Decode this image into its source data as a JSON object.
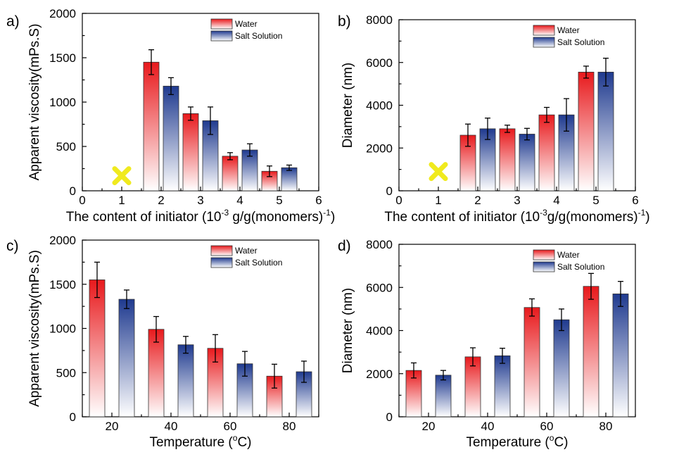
{
  "colors": {
    "water_top": "#e8191c",
    "salt_top": "#1f3a8f",
    "bar_bottom": "#ffffff",
    "marker": "#f0ea1e"
  },
  "chart_data": [
    {
      "type": "bar",
      "panel_label": "a)",
      "xlabel_parts": [
        "The content of initiator (10",
        "-3",
        " g/g(monomers)",
        "-1",
        ")"
      ],
      "ylabel": "Apparent viscosity(mPs.S)",
      "x_ticks": [
        "0",
        "1",
        "2",
        "3",
        "4",
        "5",
        "6"
      ],
      "xlim": [
        0,
        6
      ],
      "ylim": [
        0,
        2000
      ],
      "y_ticks": [
        "0",
        "500",
        "1000",
        "1500",
        "2000"
      ],
      "legend": [
        "Water",
        "Salt Solution"
      ],
      "legend_position": "top-right",
      "no_data_marker": {
        "x": 1,
        "y": 170,
        "symbol": "✖"
      },
      "categories": [
        2,
        3,
        4,
        5
      ],
      "series": [
        {
          "name": "Water",
          "values": [
            1450,
            870,
            390,
            220
          ],
          "errors": [
            140,
            75,
            40,
            60
          ]
        },
        {
          "name": "Salt Solution",
          "values": [
            1180,
            790,
            460,
            260
          ],
          "errors": [
            95,
            155,
            70,
            30
          ]
        }
      ]
    },
    {
      "type": "bar",
      "panel_label": "b)",
      "xlabel_parts": [
        "The content of initiator (10",
        "-3",
        "g/g(monomers)",
        "-1",
        ")"
      ],
      "ylabel": "Diameter (nm)",
      "x_ticks": [
        "0",
        "1",
        "2",
        "3",
        "4",
        "5",
        "6"
      ],
      "xlim": [
        0,
        6
      ],
      "ylim": [
        0,
        8000
      ],
      "y_ticks": [
        "0",
        "2000",
        "4000",
        "6000",
        "8000"
      ],
      "legend": [
        "Water",
        "Salt Solution"
      ],
      "legend_position": "top-right",
      "no_data_marker": {
        "x": 1,
        "y": 900,
        "symbol": "✖"
      },
      "categories": [
        2,
        3,
        4,
        5
      ],
      "series": [
        {
          "name": "Water",
          "values": [
            2600,
            2900,
            3550,
            5550
          ],
          "errors": [
            520,
            170,
            350,
            280
          ]
        },
        {
          "name": "Salt Solution",
          "values": [
            2900,
            2650,
            3550,
            5550
          ],
          "errors": [
            500,
            270,
            760,
            650
          ]
        }
      ]
    },
    {
      "type": "bar",
      "panel_label": "c)",
      "xlabel_parts": [
        "Temperature (",
        "o",
        "C)"
      ],
      "ylabel": "Apparent viscosity(mPs.S)",
      "x_ticks": [
        "20",
        "40",
        "60",
        "80"
      ],
      "xlim": [
        10,
        90
      ],
      "ylim": [
        0,
        2000
      ],
      "y_ticks": [
        "0",
        "500",
        "1000",
        "1500",
        "2000"
      ],
      "legend": [
        "Water",
        "Salt Solution"
      ],
      "legend_position": "top-right",
      "categories": [
        20,
        40,
        60,
        80
      ],
      "series": [
        {
          "name": "Water",
          "values": [
            1550,
            990,
            775,
            460
          ],
          "errors": [
            200,
            145,
            155,
            135
          ]
        },
        {
          "name": "Salt Solution",
          "values": [
            1330,
            815,
            600,
            510
          ],
          "errors": [
            105,
            95,
            140,
            120
          ]
        }
      ]
    },
    {
      "type": "bar",
      "panel_label": "d)",
      "xlabel_parts": [
        "Temperature (",
        "o",
        "C)"
      ],
      "ylabel": "Diameter (nm)",
      "x_ticks": [
        "20",
        "40",
        "60",
        "80"
      ],
      "xlim": [
        10,
        90
      ],
      "ylim": [
        0,
        8000
      ],
      "y_ticks": [
        "0",
        "2000",
        "4000",
        "6000",
        "8000"
      ],
      "legend": [
        "Water",
        "Salt Solution"
      ],
      "legend_position": "top-right",
      "categories": [
        20,
        40,
        60,
        80
      ],
      "series": [
        {
          "name": "Water",
          "values": [
            2150,
            2780,
            5070,
            6050
          ],
          "errors": [
            350,
            420,
            400,
            600
          ]
        },
        {
          "name": "Salt Solution",
          "values": [
            1930,
            2830,
            4500,
            5700
          ],
          "errors": [
            220,
            350,
            500,
            580
          ]
        }
      ]
    }
  ]
}
